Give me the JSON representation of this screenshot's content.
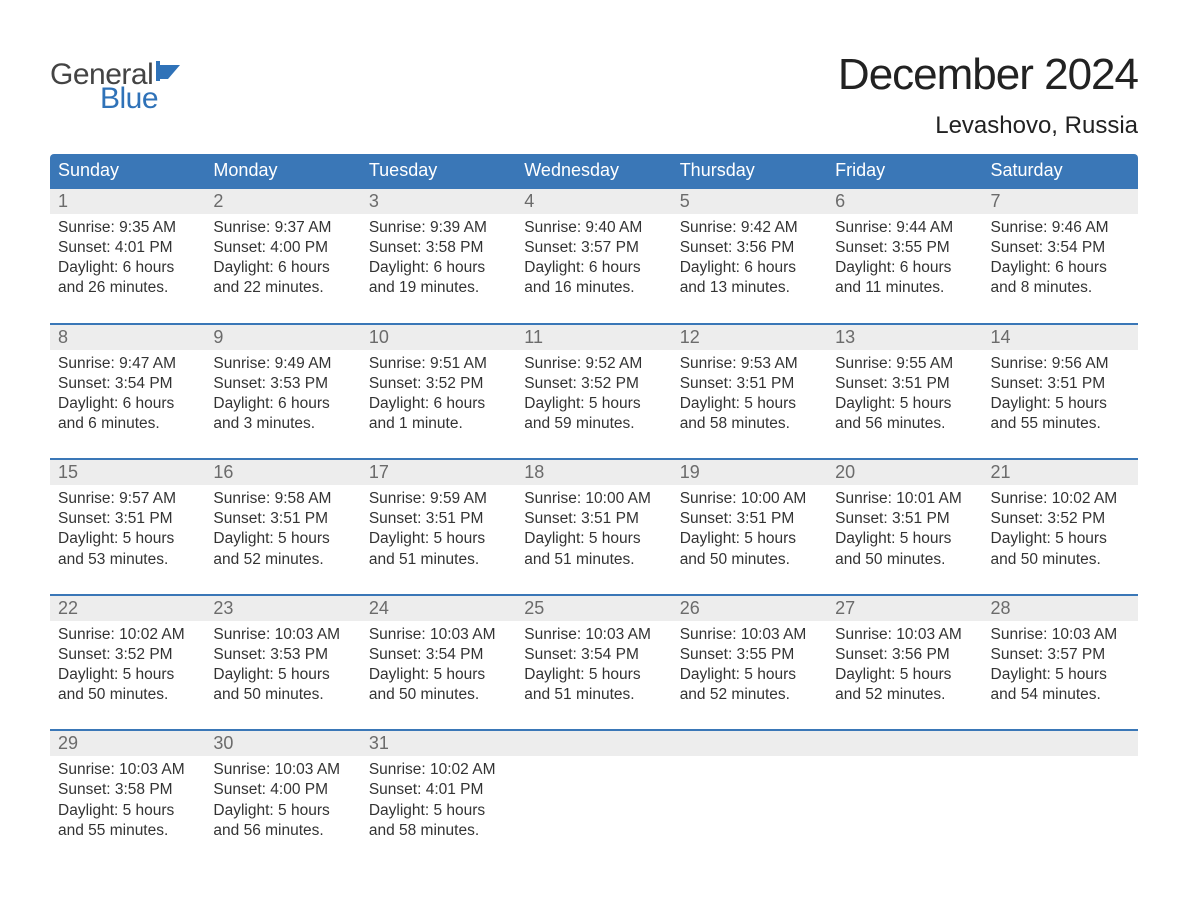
{
  "brand": {
    "word1": "General",
    "word2": "Blue",
    "flag_color": "#2f72b8",
    "word1_color": "#444444",
    "word2_color": "#2f72b8"
  },
  "title": {
    "month_year": "December 2024",
    "location": "Levashovo, Russia"
  },
  "colors": {
    "header_bg": "#3a77b7",
    "header_text": "#ffffff",
    "daynum_bg": "#ededed",
    "daynum_text": "#6b6b6b",
    "body_text": "#333333",
    "week_border": "#3a77b7",
    "page_bg": "#ffffff"
  },
  "typography": {
    "title_fontsize": 44,
    "location_fontsize": 24,
    "dayheader_fontsize": 18,
    "daynum_fontsize": 18,
    "body_fontsize": 15.5,
    "logo_fontsize": 30
  },
  "day_headers": [
    "Sunday",
    "Monday",
    "Tuesday",
    "Wednesday",
    "Thursday",
    "Friday",
    "Saturday"
  ],
  "weeks": [
    [
      {
        "n": "1",
        "sunrise": "Sunrise: 9:35 AM",
        "sunset": "Sunset: 4:01 PM",
        "dl1": "Daylight: 6 hours",
        "dl2": "and 26 minutes."
      },
      {
        "n": "2",
        "sunrise": "Sunrise: 9:37 AM",
        "sunset": "Sunset: 4:00 PM",
        "dl1": "Daylight: 6 hours",
        "dl2": "and 22 minutes."
      },
      {
        "n": "3",
        "sunrise": "Sunrise: 9:39 AM",
        "sunset": "Sunset: 3:58 PM",
        "dl1": "Daylight: 6 hours",
        "dl2": "and 19 minutes."
      },
      {
        "n": "4",
        "sunrise": "Sunrise: 9:40 AM",
        "sunset": "Sunset: 3:57 PM",
        "dl1": "Daylight: 6 hours",
        "dl2": "and 16 minutes."
      },
      {
        "n": "5",
        "sunrise": "Sunrise: 9:42 AM",
        "sunset": "Sunset: 3:56 PM",
        "dl1": "Daylight: 6 hours",
        "dl2": "and 13 minutes."
      },
      {
        "n": "6",
        "sunrise": "Sunrise: 9:44 AM",
        "sunset": "Sunset: 3:55 PM",
        "dl1": "Daylight: 6 hours",
        "dl2": "and 11 minutes."
      },
      {
        "n": "7",
        "sunrise": "Sunrise: 9:46 AM",
        "sunset": "Sunset: 3:54 PM",
        "dl1": "Daylight: 6 hours",
        "dl2": "and 8 minutes."
      }
    ],
    [
      {
        "n": "8",
        "sunrise": "Sunrise: 9:47 AM",
        "sunset": "Sunset: 3:54 PM",
        "dl1": "Daylight: 6 hours",
        "dl2": "and 6 minutes."
      },
      {
        "n": "9",
        "sunrise": "Sunrise: 9:49 AM",
        "sunset": "Sunset: 3:53 PM",
        "dl1": "Daylight: 6 hours",
        "dl2": "and 3 minutes."
      },
      {
        "n": "10",
        "sunrise": "Sunrise: 9:51 AM",
        "sunset": "Sunset: 3:52 PM",
        "dl1": "Daylight: 6 hours",
        "dl2": "and 1 minute."
      },
      {
        "n": "11",
        "sunrise": "Sunrise: 9:52 AM",
        "sunset": "Sunset: 3:52 PM",
        "dl1": "Daylight: 5 hours",
        "dl2": "and 59 minutes."
      },
      {
        "n": "12",
        "sunrise": "Sunrise: 9:53 AM",
        "sunset": "Sunset: 3:51 PM",
        "dl1": "Daylight: 5 hours",
        "dl2": "and 58 minutes."
      },
      {
        "n": "13",
        "sunrise": "Sunrise: 9:55 AM",
        "sunset": "Sunset: 3:51 PM",
        "dl1": "Daylight: 5 hours",
        "dl2": "and 56 minutes."
      },
      {
        "n": "14",
        "sunrise": "Sunrise: 9:56 AM",
        "sunset": "Sunset: 3:51 PM",
        "dl1": "Daylight: 5 hours",
        "dl2": "and 55 minutes."
      }
    ],
    [
      {
        "n": "15",
        "sunrise": "Sunrise: 9:57 AM",
        "sunset": "Sunset: 3:51 PM",
        "dl1": "Daylight: 5 hours",
        "dl2": "and 53 minutes."
      },
      {
        "n": "16",
        "sunrise": "Sunrise: 9:58 AM",
        "sunset": "Sunset: 3:51 PM",
        "dl1": "Daylight: 5 hours",
        "dl2": "and 52 minutes."
      },
      {
        "n": "17",
        "sunrise": "Sunrise: 9:59 AM",
        "sunset": "Sunset: 3:51 PM",
        "dl1": "Daylight: 5 hours",
        "dl2": "and 51 minutes."
      },
      {
        "n": "18",
        "sunrise": "Sunrise: 10:00 AM",
        "sunset": "Sunset: 3:51 PM",
        "dl1": "Daylight: 5 hours",
        "dl2": "and 51 minutes."
      },
      {
        "n": "19",
        "sunrise": "Sunrise: 10:00 AM",
        "sunset": "Sunset: 3:51 PM",
        "dl1": "Daylight: 5 hours",
        "dl2": "and 50 minutes."
      },
      {
        "n": "20",
        "sunrise": "Sunrise: 10:01 AM",
        "sunset": "Sunset: 3:51 PM",
        "dl1": "Daylight: 5 hours",
        "dl2": "and 50 minutes."
      },
      {
        "n": "21",
        "sunrise": "Sunrise: 10:02 AM",
        "sunset": "Sunset: 3:52 PM",
        "dl1": "Daylight: 5 hours",
        "dl2": "and 50 minutes."
      }
    ],
    [
      {
        "n": "22",
        "sunrise": "Sunrise: 10:02 AM",
        "sunset": "Sunset: 3:52 PM",
        "dl1": "Daylight: 5 hours",
        "dl2": "and 50 minutes."
      },
      {
        "n": "23",
        "sunrise": "Sunrise: 10:03 AM",
        "sunset": "Sunset: 3:53 PM",
        "dl1": "Daylight: 5 hours",
        "dl2": "and 50 minutes."
      },
      {
        "n": "24",
        "sunrise": "Sunrise: 10:03 AM",
        "sunset": "Sunset: 3:54 PM",
        "dl1": "Daylight: 5 hours",
        "dl2": "and 50 minutes."
      },
      {
        "n": "25",
        "sunrise": "Sunrise: 10:03 AM",
        "sunset": "Sunset: 3:54 PM",
        "dl1": "Daylight: 5 hours",
        "dl2": "and 51 minutes."
      },
      {
        "n": "26",
        "sunrise": "Sunrise: 10:03 AM",
        "sunset": "Sunset: 3:55 PM",
        "dl1": "Daylight: 5 hours",
        "dl2": "and 52 minutes."
      },
      {
        "n": "27",
        "sunrise": "Sunrise: 10:03 AM",
        "sunset": "Sunset: 3:56 PM",
        "dl1": "Daylight: 5 hours",
        "dl2": "and 52 minutes."
      },
      {
        "n": "28",
        "sunrise": "Sunrise: 10:03 AM",
        "sunset": "Sunset: 3:57 PM",
        "dl1": "Daylight: 5 hours",
        "dl2": "and 54 minutes."
      }
    ],
    [
      {
        "n": "29",
        "sunrise": "Sunrise: 10:03 AM",
        "sunset": "Sunset: 3:58 PM",
        "dl1": "Daylight: 5 hours",
        "dl2": "and 55 minutes."
      },
      {
        "n": "30",
        "sunrise": "Sunrise: 10:03 AM",
        "sunset": "Sunset: 4:00 PM",
        "dl1": "Daylight: 5 hours",
        "dl2": "and 56 minutes."
      },
      {
        "n": "31",
        "sunrise": "Sunrise: 10:02 AM",
        "sunset": "Sunset: 4:01 PM",
        "dl1": "Daylight: 5 hours",
        "dl2": "and 58 minutes."
      },
      {
        "empty": true
      },
      {
        "empty": true
      },
      {
        "empty": true
      },
      {
        "empty": true
      }
    ]
  ]
}
